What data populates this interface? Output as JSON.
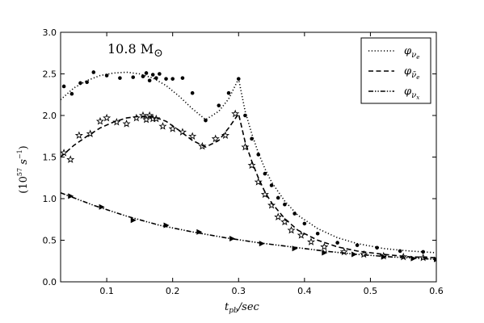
{
  "chart_data": {
    "type": "line",
    "title": "",
    "annotation": "10.8 M",
    "annotation_symbol": "⊙",
    "xlabel": "t",
    "xlabel_sub": "pb",
    "xlabel_suffix": "/sec",
    "ylabel_prefix": "(10",
    "ylabel_exp": "57",
    "ylabel_unit": " s",
    "ylabel_unit_exp": "−1",
    "ylabel_suffix": ")",
    "xlim": [
      0.03,
      0.6
    ],
    "ylim": [
      0.0,
      3.0
    ],
    "xticks": [
      "0.1",
      "0.2",
      "0.3",
      "0.4",
      "0.5",
      "0.6"
    ],
    "xtick_values": [
      0.1,
      0.2,
      0.3,
      0.4,
      0.5,
      0.6
    ],
    "yticks": [
      "0.0",
      "0.5",
      "1.0",
      "1.5",
      "2.0",
      "2.5",
      "3.0"
    ],
    "ytick_values": [
      0.0,
      0.5,
      1.0,
      1.5,
      2.0,
      2.5,
      3.0
    ],
    "grid": false,
    "legend_position": "top-right",
    "series": [
      {
        "name": "φ",
        "sub": "ν",
        "subsub": "e",
        "style": "dotted",
        "marker": "circle",
        "x": [
          0.03,
          0.05,
          0.07,
          0.09,
          0.11,
          0.13,
          0.15,
          0.17,
          0.19,
          0.21,
          0.23,
          0.25,
          0.27,
          0.285,
          0.3,
          0.31,
          0.32,
          0.33,
          0.34,
          0.35,
          0.37,
          0.39,
          0.42,
          0.45,
          0.48,
          0.52,
          0.56,
          0.6
        ],
        "y": [
          2.19,
          2.33,
          2.42,
          2.48,
          2.51,
          2.52,
          2.5,
          2.45,
          2.36,
          2.23,
          2.08,
          1.95,
          2.05,
          2.2,
          2.44,
          2.05,
          1.78,
          1.55,
          1.36,
          1.2,
          0.97,
          0.8,
          0.64,
          0.53,
          0.46,
          0.4,
          0.37,
          0.35
        ],
        "points_x": [
          0.035,
          0.047,
          0.06,
          0.07,
          0.08,
          0.1,
          0.12,
          0.14,
          0.155,
          0.16,
          0.165,
          0.17,
          0.175,
          0.18,
          0.19,
          0.2,
          0.215,
          0.23,
          0.25,
          0.27,
          0.285,
          0.3,
          0.31,
          0.32,
          0.33,
          0.34,
          0.35,
          0.36,
          0.37,
          0.385,
          0.4,
          0.42,
          0.45,
          0.48,
          0.51,
          0.545,
          0.58
        ],
        "points_y": [
          2.35,
          2.26,
          2.39,
          2.4,
          2.52,
          2.48,
          2.45,
          2.46,
          2.47,
          2.51,
          2.42,
          2.49,
          2.45,
          2.5,
          2.44,
          2.44,
          2.45,
          2.27,
          1.94,
          2.12,
          2.27,
          2.44,
          2.0,
          1.72,
          1.53,
          1.3,
          1.16,
          1.01,
          0.93,
          0.82,
          0.7,
          0.58,
          0.47,
          0.44,
          0.41,
          0.37,
          0.36
        ]
      },
      {
        "name": "φ",
        "sub": "ν̄",
        "subsub": "e",
        "style": "dashed",
        "marker": "star",
        "x": [
          0.03,
          0.05,
          0.07,
          0.09,
          0.11,
          0.13,
          0.15,
          0.17,
          0.19,
          0.21,
          0.23,
          0.25,
          0.27,
          0.285,
          0.3,
          0.31,
          0.32,
          0.33,
          0.34,
          0.35,
          0.37,
          0.39,
          0.42,
          0.45,
          0.48,
          0.52,
          0.56,
          0.6
        ],
        "y": [
          1.5,
          1.64,
          1.75,
          1.85,
          1.92,
          1.97,
          1.99,
          1.99,
          1.93,
          1.82,
          1.7,
          1.62,
          1.7,
          1.85,
          2.02,
          1.68,
          1.45,
          1.25,
          1.08,
          0.95,
          0.76,
          0.62,
          0.5,
          0.42,
          0.37,
          0.33,
          0.3,
          0.29
        ],
        "points_x": [
          0.035,
          0.045,
          0.058,
          0.075,
          0.09,
          0.1,
          0.115,
          0.13,
          0.145,
          0.155,
          0.16,
          0.165,
          0.17,
          0.175,
          0.185,
          0.2,
          0.215,
          0.23,
          0.245,
          0.265,
          0.28,
          0.295,
          0.31,
          0.32,
          0.33,
          0.34,
          0.35,
          0.36,
          0.37,
          0.38,
          0.395,
          0.41,
          0.43,
          0.46,
          0.49,
          0.52,
          0.55,
          0.58
        ],
        "points_y": [
          1.55,
          1.47,
          1.76,
          1.78,
          1.93,
          1.97,
          1.92,
          1.9,
          1.97,
          2.0,
          1.95,
          2.0,
          1.96,
          1.96,
          1.87,
          1.84,
          1.8,
          1.75,
          1.63,
          1.72,
          1.76,
          2.02,
          1.62,
          1.4,
          1.2,
          1.05,
          0.92,
          0.78,
          0.72,
          0.62,
          0.56,
          0.48,
          0.42,
          0.36,
          0.33,
          0.31,
          0.3,
          0.29
        ]
      },
      {
        "name": "φ",
        "sub": "ν",
        "subsub": "x",
        "style": "dashdotdot",
        "marker": "triangle",
        "x": [
          0.03,
          0.08,
          0.13,
          0.18,
          0.23,
          0.28,
          0.33,
          0.38,
          0.43,
          0.48,
          0.53,
          0.6
        ],
        "y": [
          1.07,
          0.92,
          0.79,
          0.68,
          0.6,
          0.53,
          0.47,
          0.42,
          0.37,
          0.33,
          0.3,
          0.27
        ],
        "points_x": [
          0.045,
          0.092,
          0.14,
          0.19,
          0.24,
          0.29,
          0.335,
          0.385,
          0.43,
          0.475,
          0.52,
          0.565,
          0.6
        ],
        "points_y": [
          1.03,
          0.9,
          0.74,
          0.68,
          0.6,
          0.52,
          0.46,
          0.4,
          0.35,
          0.33,
          0.3,
          0.28,
          0.27
        ]
      }
    ]
  }
}
